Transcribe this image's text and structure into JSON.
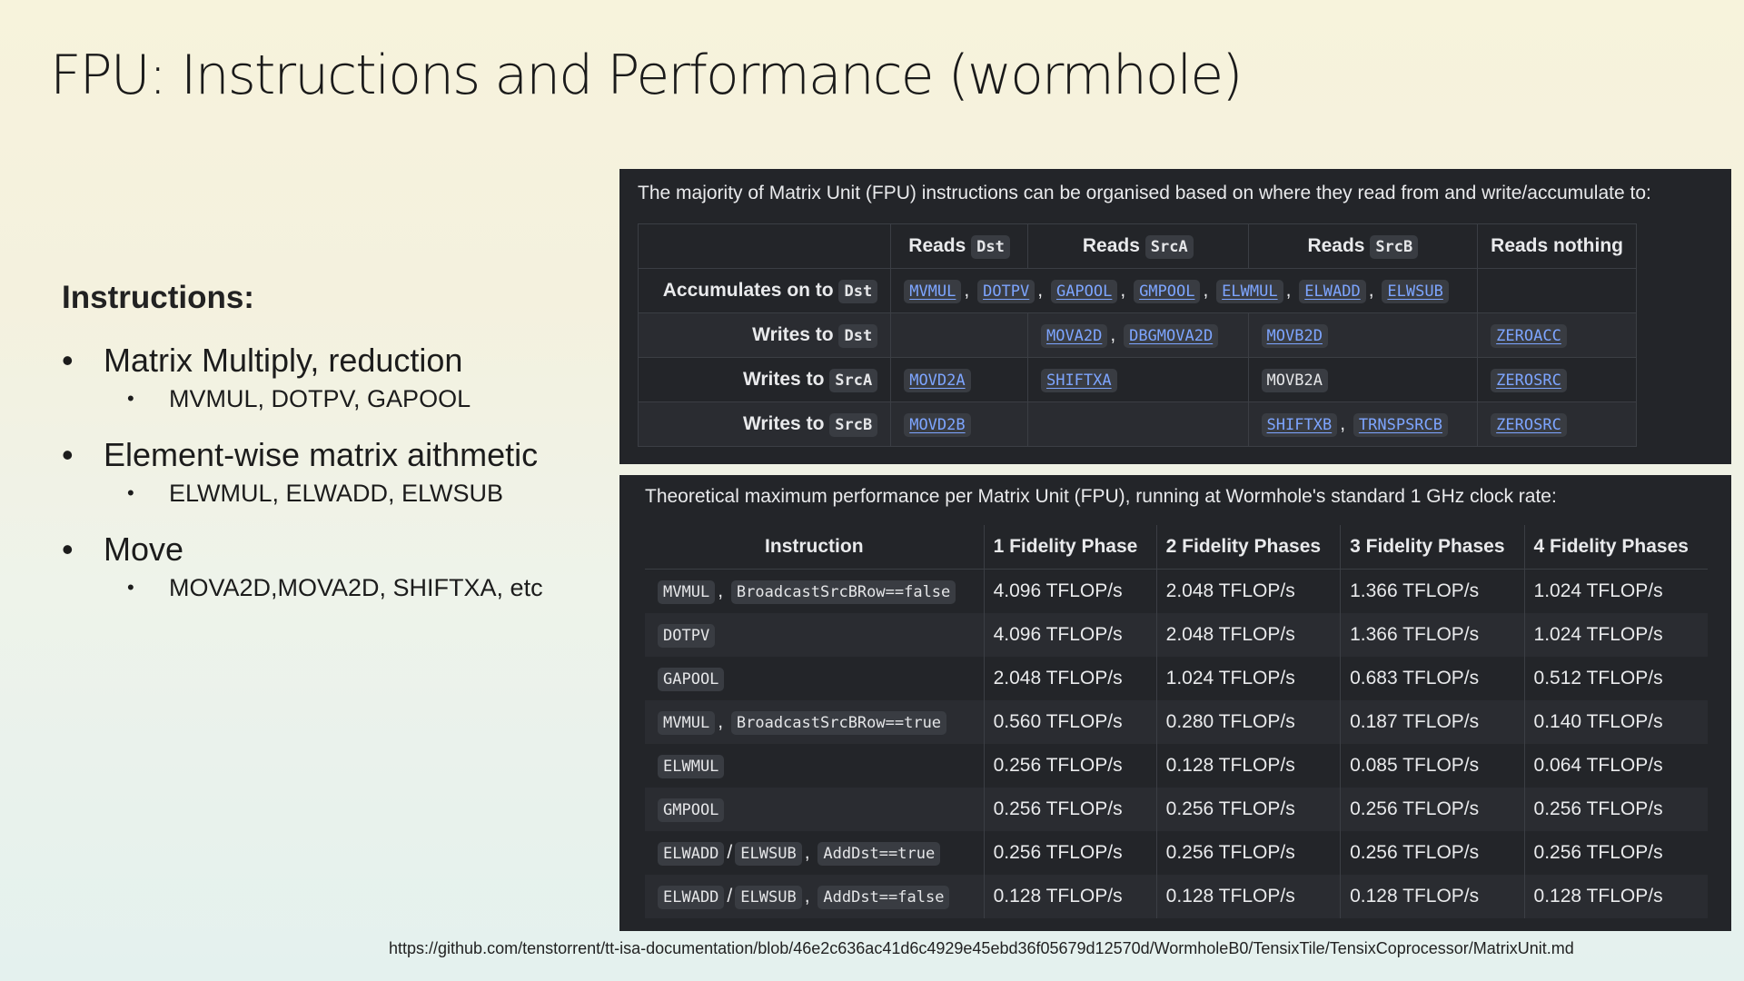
{
  "title": "FPU: Instructions and Performance (wormhole)",
  "instructions": {
    "heading": "Instructions:",
    "items": [
      {
        "label": "Matrix Multiply, reduction",
        "sub": "MVMUL, DOTPV, GAPOOL"
      },
      {
        "label": "Element-wise matrix aithmetic",
        "sub": "ELWMUL, ELWADD, ELWSUB"
      },
      {
        "label": "Move",
        "sub": "MOVA2D,MOVA2D, SHIFTXA, etc"
      }
    ]
  },
  "organization": {
    "intro": "The majority of Matrix Unit (FPU) instructions can be organised based on where they read from and write/accumulate to:",
    "headers": {
      "reads": "Reads",
      "dst": "Dst",
      "srca": "SrcA",
      "srcb": "SrcB",
      "nothing": "Reads nothing"
    },
    "rows": {
      "accumulates": {
        "label": "Accumulates on to",
        "reg": "Dst"
      },
      "writes_dst": {
        "label": "Writes to",
        "reg": "Dst"
      },
      "writes_srca": {
        "label": "Writes to",
        "reg": "SrcA"
      },
      "writes_srcb": {
        "label": "Writes to",
        "reg": "SrcB"
      }
    },
    "instr": {
      "mvmul": "MVMUL",
      "dotpv": "DOTPV",
      "gapool": "GAPOOL",
      "gmpool": "GMPOOL",
      "elwmul": "ELWMUL",
      "elwadd": "ELWADD",
      "elwsub": "ELWSUB",
      "mova2d": "MOVA2D",
      "dbgmova2d": "DBGMOVA2D",
      "movb2d": "MOVB2D",
      "zeroacc": "ZEROACC",
      "movd2a": "MOVD2A",
      "shiftxa": "SHIFTXA",
      "movb2a": "MOVB2A",
      "zerosrc": "ZEROSRC",
      "movd2b": "MOVD2B",
      "shiftxb": "SHIFTXB",
      "trnspsrcb": "TRNSPSRCB"
    }
  },
  "performance": {
    "intro": "Theoretical maximum performance per Matrix Unit (FPU), running at Wormhole's standard 1 GHz clock rate:",
    "headers": [
      "Instruction",
      "1 Fidelity Phase",
      "2 Fidelity Phases",
      "3 Fidelity Phases",
      "4 Fidelity Phases"
    ],
    "rows": [
      {
        "codes": [
          "MVMUL",
          "BroadcastSrcBRow==false"
        ],
        "values": [
          "4.096 TFLOP/s",
          "2.048 TFLOP/s",
          "1.366 TFLOP/s",
          "1.024 TFLOP/s"
        ]
      },
      {
        "codes": [
          "DOTPV"
        ],
        "values": [
          "4.096 TFLOP/s",
          "2.048 TFLOP/s",
          "1.366 TFLOP/s",
          "1.024 TFLOP/s"
        ]
      },
      {
        "codes": [
          "GAPOOL"
        ],
        "values": [
          "2.048 TFLOP/s",
          "1.024 TFLOP/s",
          "0.683 TFLOP/s",
          "0.512 TFLOP/s"
        ]
      },
      {
        "codes": [
          "MVMUL",
          "BroadcastSrcBRow==true"
        ],
        "values": [
          "0.560 TFLOP/s",
          "0.280 TFLOP/s",
          "0.187 TFLOP/s",
          "0.140 TFLOP/s"
        ]
      },
      {
        "codes": [
          "ELWMUL"
        ],
        "values": [
          "0.256 TFLOP/s",
          "0.128 TFLOP/s",
          "0.085 TFLOP/s",
          "0.064 TFLOP/s"
        ]
      },
      {
        "codes": [
          "GMPOOL"
        ],
        "values": [
          "0.256 TFLOP/s",
          "0.256 TFLOP/s",
          "0.256 TFLOP/s",
          "0.256 TFLOP/s"
        ]
      },
      {
        "codes": [
          "ELWADD",
          "ELWSUB",
          "AddDst==true"
        ],
        "values": [
          "0.256 TFLOP/s",
          "0.256 TFLOP/s",
          "0.256 TFLOP/s",
          "0.256 TFLOP/s"
        ]
      },
      {
        "codes": [
          "ELWADD",
          "ELWSUB",
          "AddDst==false"
        ],
        "values": [
          "0.128 TFLOP/s",
          "0.128 TFLOP/s",
          "0.128 TFLOP/s",
          "0.128 TFLOP/s"
        ]
      }
    ]
  },
  "source_url": "https://github.com/tenstorrent/tt-isa-documentation/blob/46e2c636ac41d6c4929e45ebd36f05679d12570d/WormholeB0/TensixTile/TensixCoprocessor/MatrixUnit.md"
}
